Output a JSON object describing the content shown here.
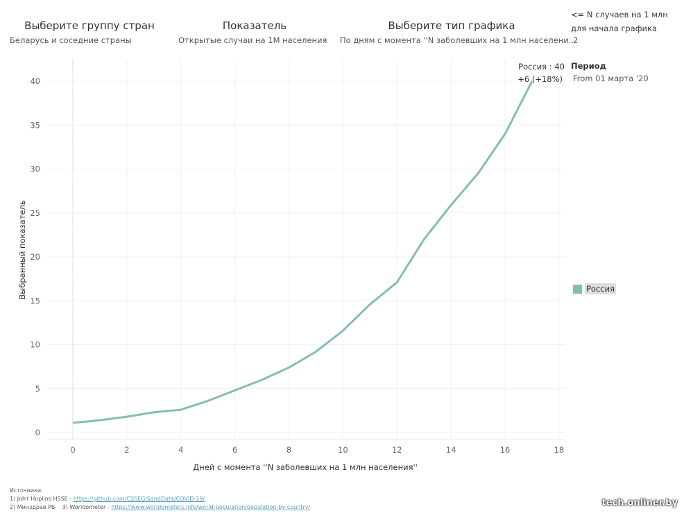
{
  "filters": {
    "group": {
      "title": "Выберите группу стран",
      "value": "Беларусь и соседние страны"
    },
    "indicator": {
      "title": "Показатель",
      "value": "Открытые случаи на 1M населения"
    },
    "chart_type": {
      "title": "Выберите тип графика",
      "value": "По дням с момента ''N заболевших на 1 млн населени.."
    },
    "threshold": {
      "title_line1": "<= N случаев на 1 млн",
      "title_line2": "для начала графика",
      "value": "2"
    },
    "period": {
      "title": "Период",
      "value": "From 01 марта '20"
    }
  },
  "tooltip": {
    "line1": "Россия : 40",
    "line2": "+6 (+18%)"
  },
  "legend": {
    "label": "Россия",
    "color": "#86bcb6"
  },
  "sources": {
    "title": "Источники:",
    "line1_text": "1) Johт Hoplins HSSE - ",
    "line1_link": "https://github.com/CSSEGISandData/COVID-19/",
    "line2_text": "2) Минздрав РБ    3) Worldometer - ",
    "line2_link": "https://www.worldometers.info/world-population/population-by-country/"
  },
  "watermark": "tech.onliner.by",
  "chart_data": {
    "type": "line",
    "xlabel": "Дней с момента ''N заболевших на 1 млн населения''",
    "ylabel": "Выбранный показатель",
    "xlim": [
      -1,
      18
    ],
    "ylim": [
      -0.5,
      42.5
    ],
    "xticks": [
      0,
      2,
      4,
      6,
      8,
      10,
      12,
      14,
      16,
      18
    ],
    "yticks": [
      0,
      5,
      10,
      15,
      20,
      25,
      30,
      35,
      40
    ],
    "grid": true,
    "legend_position": "right",
    "series": [
      {
        "name": "Россия",
        "color": "#86bcb6",
        "x": [
          0,
          1,
          2,
          3,
          4,
          5,
          6,
          7,
          8,
          9,
          10,
          11,
          12,
          13,
          14,
          15,
          16,
          17
        ],
        "y": [
          1.1,
          1.4,
          1.8,
          2.3,
          2.6,
          3.6,
          4.8,
          6.0,
          7.4,
          9.2,
          11.6,
          14.6,
          17.1,
          22.0,
          25.9,
          29.5,
          34.0,
          40
        ]
      }
    ]
  }
}
